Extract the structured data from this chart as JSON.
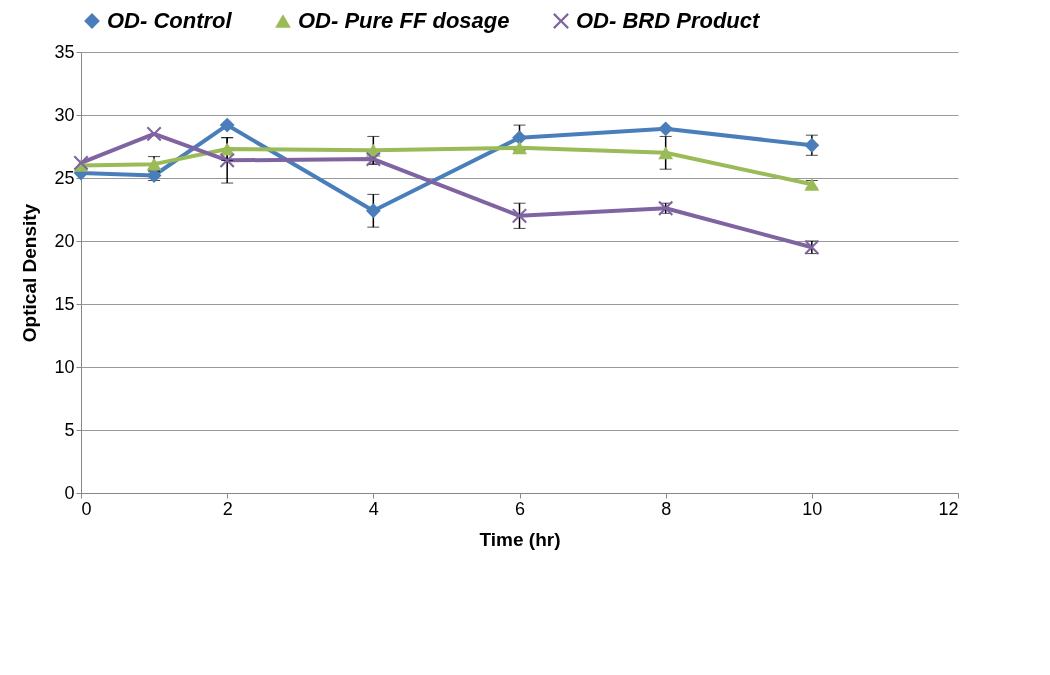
{
  "chart_data": {
    "type": "line",
    "ylabel": "Optical Density",
    "xlabel": "Time (hr)",
    "x": [
      0,
      1,
      2,
      4,
      6,
      8,
      10
    ],
    "xlim": [
      0,
      12
    ],
    "xticks": [
      0,
      2,
      4,
      6,
      8,
      10,
      12
    ],
    "ylim": [
      0,
      35
    ],
    "yticks": [
      0,
      5,
      10,
      15,
      20,
      25,
      30,
      35
    ],
    "grid": "y",
    "legend": "top",
    "series": [
      {
        "name": "OD- Control",
        "color": "#4a7ebb",
        "marker": "diamond",
        "values": [
          25.4,
          25.2,
          29.2,
          22.4,
          28.2,
          28.9,
          27.6
        ],
        "errors": [
          null,
          0.4,
          null,
          1.3,
          1.0,
          null,
          0.8
        ]
      },
      {
        "name": "OD- Pure FF dosage",
        "color": "#9bbb59",
        "marker": "triangle",
        "values": [
          26.0,
          26.1,
          27.3,
          27.2,
          27.4,
          27.0,
          24.5
        ],
        "errors": [
          null,
          0.6,
          0.9,
          1.1,
          null,
          1.3,
          0.3
        ]
      },
      {
        "name": "OD- BRD Product",
        "color": "#8064a2",
        "marker": "cross",
        "values": [
          26.2,
          28.5,
          26.4,
          26.5,
          22.0,
          22.6,
          19.5
        ],
        "errors": [
          null,
          null,
          1.8,
          0.4,
          1.0,
          0.4,
          0.5
        ]
      }
    ]
  }
}
